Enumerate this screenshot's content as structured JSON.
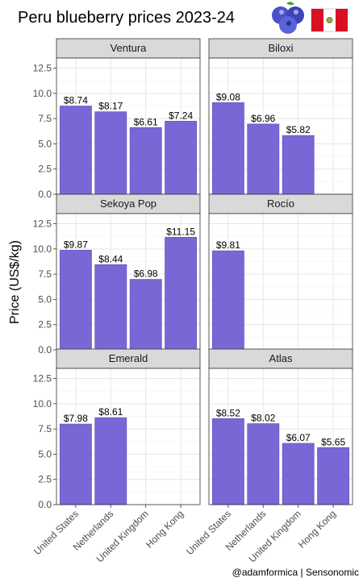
{
  "title": "Peru blueberry prices 2023-24",
  "ylabel": "Price (US$/kg)",
  "caption": "@adamformica | Sensonomic",
  "icons": [
    "blueberries-icon",
    "peru-flag-icon"
  ],
  "colors": {
    "bar_fill": "#7a67d6",
    "bar_stroke": "#6a55c6",
    "strip_bg": "#d9d9d9",
    "flag_red": "#d91023"
  },
  "chart_data": {
    "type": "bar",
    "categories": [
      "United States",
      "Netherlands",
      "United Kingdom",
      "Hong Kong"
    ],
    "ylim": [
      0,
      13.5
    ],
    "yticks": [
      "0.0",
      "2.5",
      "5.0",
      "7.5",
      "10.0",
      "12.5"
    ],
    "ytick_values": [
      0,
      2.5,
      5,
      7.5,
      10,
      12.5
    ],
    "grid": true,
    "facets": [
      {
        "name": "Ventura",
        "values": [
          8.74,
          8.17,
          6.61,
          7.24
        ],
        "labels": [
          "$8.74",
          "$8.17",
          "$6.61",
          "$7.24"
        ]
      },
      {
        "name": "Biloxi",
        "values": [
          9.08,
          6.96,
          5.82,
          null
        ],
        "labels": [
          "$9.08",
          "$6.96",
          "$5.82",
          null
        ]
      },
      {
        "name": "Sekoya Pop",
        "values": [
          9.87,
          8.44,
          6.98,
          11.15
        ],
        "labels": [
          "$9.87",
          "$8.44",
          "$6.98",
          "$11.15"
        ]
      },
      {
        "name": "Rocío",
        "values": [
          9.81,
          null,
          null,
          null
        ],
        "labels": [
          "$9.81",
          null,
          null,
          null
        ]
      },
      {
        "name": "Emerald",
        "values": [
          7.98,
          8.61,
          null,
          null
        ],
        "labels": [
          "$7.98",
          "$8.61",
          null,
          null
        ]
      },
      {
        "name": "Atlas",
        "values": [
          8.52,
          8.02,
          6.07,
          5.65
        ],
        "labels": [
          "$8.52",
          "$8.02",
          "$6.07",
          "$5.65"
        ]
      }
    ]
  }
}
